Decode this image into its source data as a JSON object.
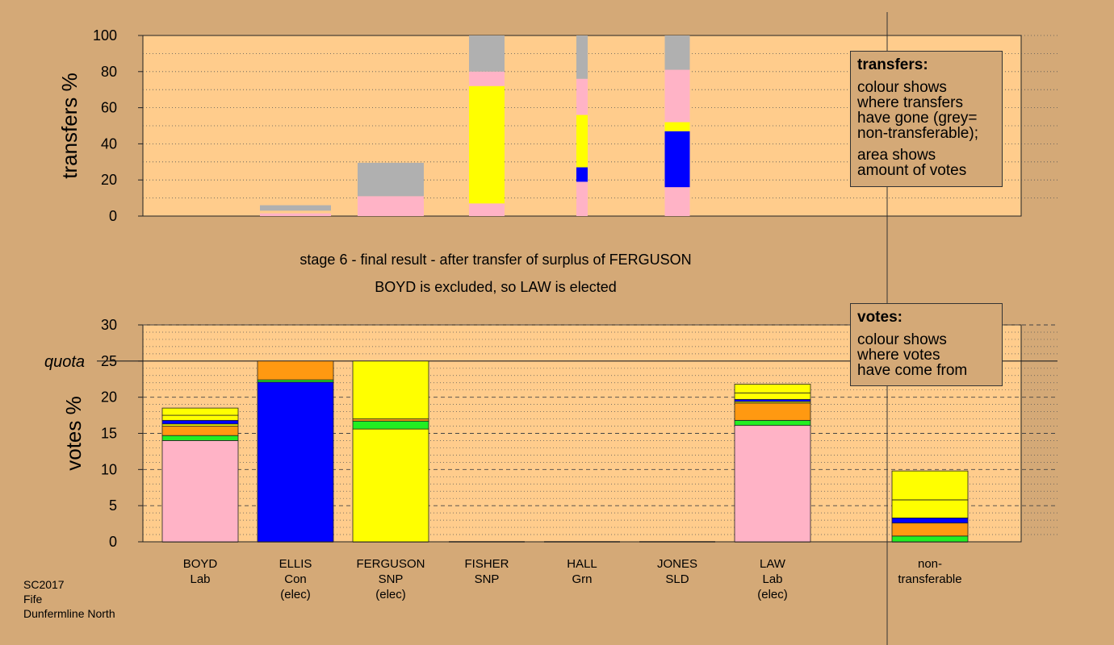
{
  "colors": {
    "background": "#d4a977",
    "plot_background": "#ffcc8c",
    "BOYD": "#ffb3c6",
    "ELLIS": "#0000ff",
    "FERGUSON": "#ffff00",
    "FISHER": "#ffff00",
    "HALL": "#22ee22",
    "JONES": "#ff9911",
    "LAW": "#ffb3c6",
    "non-transferable": "#b0b0b0"
  },
  "stage_text": {
    "line1": "stage 6 - final result - after transfer of surplus of FERGUSON",
    "line2": "BOYD is excluded, so LAW is elected"
  },
  "legends": {
    "transfers": {
      "title": "transfers:",
      "lines": [
        "colour shows",
        "where transfers",
        "have gone (grey=",
        "non-transferable);"
      ],
      "lines2": [
        "area shows",
        "amount of votes"
      ]
    },
    "votes": {
      "title": "votes:",
      "lines": [
        "colour shows",
        "where votes",
        "have come from"
      ]
    }
  },
  "footer": [
    "SC2017",
    "Fife",
    "Dunfermline North"
  ],
  "chart_data": [
    {
      "type": "bar",
      "id": "transfers",
      "ylabel": "transfers %",
      "ylim": [
        0,
        100
      ],
      "yticks": [
        0,
        20,
        40,
        60,
        80,
        100
      ],
      "columns": [
        {
          "name": "BOYD",
          "segments": []
        },
        {
          "name": "ELLIS",
          "segments": [
            {
              "to": "BOYD",
              "from": 0,
              "to_value": 1.5
            },
            {
              "to": "non-transferable",
              "from": 3,
              "to_value": 6
            }
          ]
        },
        {
          "name": "FERGUSON",
          "segments": [
            {
              "to": "BOYD",
              "from": 0,
              "to_value": 11
            },
            {
              "to": "non-transferable",
              "from": 11,
              "to_value": 29.5
            }
          ]
        },
        {
          "name": "FISHER",
          "segments": [
            {
              "to": "BOYD",
              "from": 0,
              "to_value": 7
            },
            {
              "to": "FERGUSON",
              "from": 7,
              "to_value": 72
            },
            {
              "to": "BOYD",
              "from": 72,
              "to_value": 80
            },
            {
              "to": "non-transferable",
              "from": 80,
              "to_value": 100
            }
          ]
        },
        {
          "name": "HALL",
          "segments": [
            {
              "to": "BOYD",
              "from": 0,
              "to_value": 19
            },
            {
              "to": "ELLIS",
              "from": 19,
              "to_value": 27
            },
            {
              "to": "FERGUSON",
              "from": 27,
              "to_value": 56
            },
            {
              "to": "BOYD",
              "from": 56,
              "to_value": 76
            },
            {
              "to": "non-transferable",
              "from": 76,
              "to_value": 100
            }
          ]
        },
        {
          "name": "JONES",
          "segments": [
            {
              "to": "BOYD",
              "from": 0,
              "to_value": 16
            },
            {
              "to": "ELLIS",
              "from": 16,
              "to_value": 47
            },
            {
              "to": "FERGUSON",
              "from": 47,
              "to_value": 52
            },
            {
              "to": "BOYD",
              "from": 52,
              "to_value": 81
            },
            {
              "to": "non-transferable",
              "from": 81,
              "to_value": 100
            }
          ]
        },
        {
          "name": "LAW",
          "segments": []
        }
      ]
    },
    {
      "type": "bar",
      "id": "votes",
      "ylabel": "votes %",
      "ylim": [
        0,
        30
      ],
      "yticks": [
        0,
        5,
        10,
        15,
        20,
        25,
        30
      ],
      "quota": 25,
      "quota_label": "quota",
      "candidates": [
        {
          "name": "BOYD",
          "party": "Lab",
          "status": "",
          "total": 18.5,
          "stack": [
            [
              "BOYD",
              14.0
            ],
            [
              "HALL",
              0.7
            ],
            [
              "JONES",
              1.3
            ],
            [
              "FERGUSON",
              0.3
            ],
            [
              "ELLIS",
              0.5
            ],
            [
              "FERGUSON",
              0.7
            ],
            [
              "FISHER",
              1.0
            ]
          ]
        },
        {
          "name": "ELLIS",
          "party": "Con",
          "status": "(elec)",
          "total": 25,
          "stack": [
            [
              "ELLIS",
              22.1
            ],
            [
              "HALL",
              0.3
            ],
            [
              "JONES",
              2.6
            ]
          ]
        },
        {
          "name": "FERGUSON",
          "party": "SNP",
          "status": "(elec)",
          "total": 25,
          "stack": [
            [
              "FERGUSON",
              15.6
            ],
            [
              "HALL",
              1.1
            ],
            [
              "JONES",
              0.3
            ],
            [
              "FISHER",
              8.0
            ]
          ]
        },
        {
          "name": "FISHER",
          "party": "SNP",
          "status": "",
          "total": 0,
          "stack": []
        },
        {
          "name": "HALL",
          "party": "Grn",
          "status": "",
          "total": 0,
          "stack": []
        },
        {
          "name": "JONES",
          "party": "SLD",
          "status": "",
          "total": 0,
          "stack": []
        },
        {
          "name": "LAW",
          "party": "Lab",
          "status": "(elec)",
          "total": 21.8,
          "stack": [
            [
              "LAW",
              16.1
            ],
            [
              "HALL",
              0.7
            ],
            [
              "JONES",
              2.4
            ],
            [
              "FERGUSON",
              0.2
            ],
            [
              "ELLIS",
              0.3
            ],
            [
              "FERGUSON",
              0.9
            ],
            [
              "FISHER",
              1.2
            ]
          ]
        },
        {
          "name": "non-",
          "name2": "transferable",
          "party": "",
          "status": "",
          "total": 9.8,
          "stack": [
            [
              "HALL",
              0.8
            ],
            [
              "JONES",
              1.8
            ],
            [
              "ELLIS",
              0.7
            ],
            [
              "FERGUSON",
              2.5
            ],
            [
              "FISHER",
              4.0
            ]
          ]
        }
      ]
    }
  ]
}
